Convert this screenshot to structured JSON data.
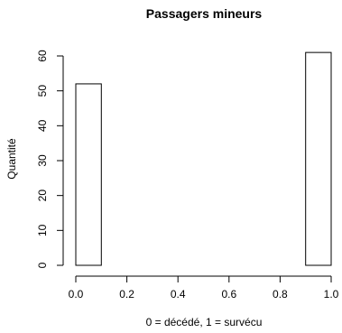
{
  "chart_data": {
    "type": "bar",
    "title": "Passagers mineurs",
    "xlabel": "0 = décédé, 1 = survécu",
    "ylabel": "Quantité",
    "xlim": [
      0.0,
      1.0
    ],
    "ylim": [
      0,
      62
    ],
    "x_ticks": [
      "0.0",
      "0.2",
      "0.4",
      "0.6",
      "0.8",
      "1.0"
    ],
    "y_ticks": [
      "0",
      "10",
      "20",
      "30",
      "40",
      "50",
      "60"
    ],
    "bins": [
      {
        "start": 0.0,
        "end": 0.1,
        "value": 52
      },
      {
        "start": 0.1,
        "end": 0.2,
        "value": 0
      },
      {
        "start": 0.2,
        "end": 0.3,
        "value": 0
      },
      {
        "start": 0.3,
        "end": 0.4,
        "value": 0
      },
      {
        "start": 0.4,
        "end": 0.5,
        "value": 0
      },
      {
        "start": 0.5,
        "end": 0.6,
        "value": 0
      },
      {
        "start": 0.6,
        "end": 0.7,
        "value": 0
      },
      {
        "start": 0.7,
        "end": 0.8,
        "value": 0
      },
      {
        "start": 0.8,
        "end": 0.9,
        "value": 0
      },
      {
        "start": 0.9,
        "end": 1.0,
        "value": 61
      }
    ],
    "bar_fill": "#ffffff",
    "bar_stroke": "#000000",
    "grid": false,
    "legend": "none"
  }
}
